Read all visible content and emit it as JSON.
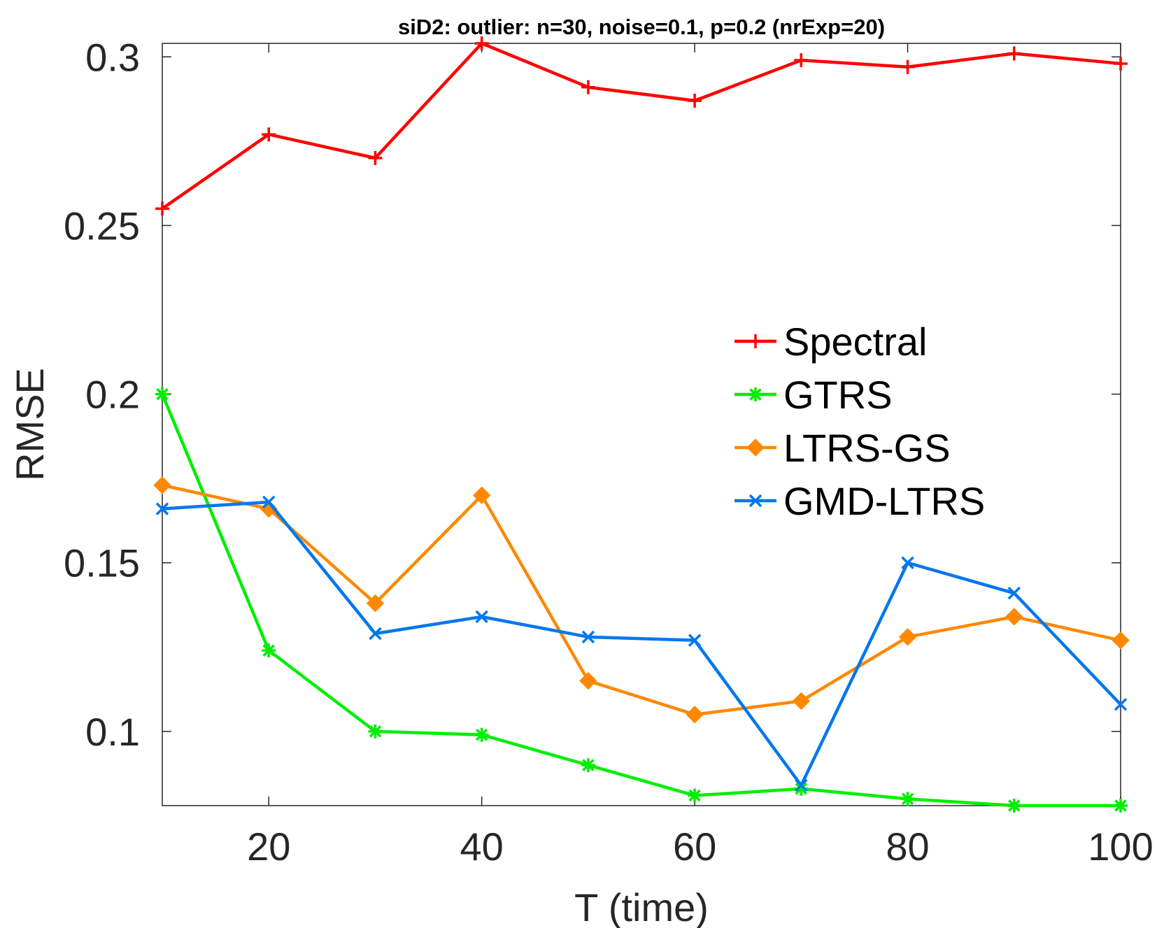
{
  "chart_data": {
    "type": "line",
    "title": "siD2: outlier: n=30, noise=0.1, p=0.2 (nrExp=20)",
    "xlabel": "T (time)",
    "ylabel": "RMSE",
    "xlim": [
      10,
      100
    ],
    "ylim": [
      0.078,
      0.304
    ],
    "xticks": [
      20,
      40,
      60,
      80,
      100
    ],
    "yticks": [
      0.1,
      0.15,
      0.2,
      0.25,
      0.3
    ],
    "x": [
      10,
      20,
      30,
      40,
      50,
      60,
      70,
      80,
      90,
      100
    ],
    "grid": false,
    "legend_position": "right-middle",
    "series": [
      {
        "name": "Spectral",
        "color": "#ff0000",
        "marker": "plus",
        "values": [
          0.255,
          0.277,
          0.27,
          0.304,
          0.291,
          0.287,
          0.299,
          0.297,
          0.301,
          0.298
        ]
      },
      {
        "name": "GTRS",
        "color": "#00ee00",
        "marker": "asterisk",
        "values": [
          0.2,
          0.124,
          0.1,
          0.099,
          0.09,
          0.081,
          0.083,
          0.08,
          0.078,
          0.078
        ]
      },
      {
        "name": "LTRS-GS",
        "color": "#ff8800",
        "marker": "diamond",
        "values": [
          0.173,
          0.166,
          0.138,
          0.17,
          0.115,
          0.105,
          0.109,
          0.128,
          0.134,
          0.127
        ]
      },
      {
        "name": "GMD-LTRS",
        "color": "#0077ee",
        "marker": "cross",
        "values": [
          0.166,
          0.168,
          0.129,
          0.134,
          0.128,
          0.127,
          0.084,
          0.15,
          0.141,
          0.108
        ]
      }
    ]
  }
}
